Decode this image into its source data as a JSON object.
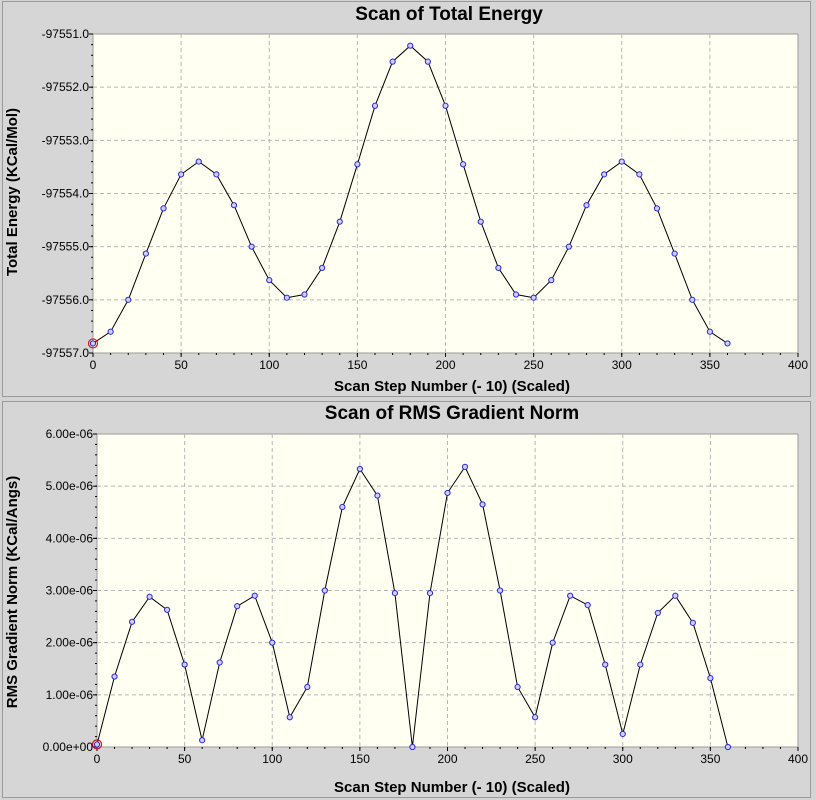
{
  "chart_data": [
    {
      "type": "line",
      "title": "Scan of Total Energy",
      "xlabel": "Scan Step Number (- 10) (Scaled)",
      "ylabel": "Total Energy (KCal/Mol)",
      "xlim": [
        0,
        400
      ],
      "ylim": [
        -97557.0,
        -97551.0
      ],
      "xticks": [
        "0",
        "50",
        "100",
        "150",
        "200",
        "250",
        "300",
        "350",
        "400"
      ],
      "yticks": [
        "-97551.0",
        "-97552.0",
        "-97553.0",
        "-97554.0",
        "-97555.0",
        "-97556.0",
        "-97557.0"
      ],
      "grid": true,
      "selected_index": 0,
      "colors": {
        "marker_stroke": "#2828d8",
        "marker_fill": "#cfd0ff",
        "line": "#000000",
        "selected": "#d01020",
        "plot_bg": "#fffff2"
      },
      "x": [
        0,
        10,
        20,
        30,
        40,
        50,
        60,
        70,
        80,
        90,
        100,
        110,
        120,
        130,
        140,
        150,
        160,
        170,
        180,
        190,
        200,
        210,
        220,
        230,
        240,
        250,
        260,
        270,
        280,
        290,
        300,
        310,
        320,
        330,
        340,
        350,
        360
      ],
      "y": [
        -97556.82,
        -97556.6,
        -97556.0,
        -97555.13,
        -97554.28,
        -97553.64,
        -97553.4,
        -97553.64,
        -97554.22,
        -97555.0,
        -97555.63,
        -97555.96,
        -97555.9,
        -97555.4,
        -97554.53,
        -97553.45,
        -97552.35,
        -97551.52,
        -97551.22,
        -97551.52,
        -97552.35,
        -97553.45,
        -97554.53,
        -97555.4,
        -97555.9,
        -97555.96,
        -97555.63,
        -97555.0,
        -97554.22,
        -97553.64,
        -97553.4,
        -97553.64,
        -97554.28,
        -97555.13,
        -97556.0,
        -97556.6,
        -97556.82
      ]
    },
    {
      "type": "line",
      "title": "Scan of RMS Gradient Norm",
      "xlabel": "Scan Step Number (- 10) (Scaled)",
      "ylabel": "RMS Gradient Norm (KCal/Angs)",
      "xlim": [
        0,
        400
      ],
      "ylim": [
        0,
        6e-06
      ],
      "xticks": [
        "0",
        "50",
        "100",
        "150",
        "200",
        "250",
        "300",
        "350",
        "400"
      ],
      "yticks": [
        "6.00e-06",
        "5.00e-06",
        "4.00e-06",
        "3.00e-06",
        "2.00e-06",
        "1.00e-06",
        "0.00e+00"
      ],
      "grid": true,
      "selected_index": 0,
      "colors": {
        "marker_stroke": "#2828d8",
        "marker_fill": "#cfd0ff",
        "line": "#000000",
        "selected": "#d01020",
        "plot_bg": "#fffff2"
      },
      "x": [
        0,
        10,
        20,
        30,
        40,
        50,
        60,
        70,
        80,
        90,
        100,
        110,
        120,
        130,
        140,
        150,
        160,
        170,
        180,
        190,
        200,
        210,
        220,
        230,
        240,
        250,
        260,
        270,
        280,
        290,
        300,
        310,
        320,
        330,
        340,
        350,
        360
      ],
      "y": [
        5e-08,
        1.35e-06,
        2.4e-06,
        2.88e-06,
        2.63e-06,
        1.58e-06,
        1.3e-07,
        1.62e-06,
        2.7e-06,
        2.9e-06,
        2e-06,
        5.7e-07,
        1.15e-06,
        3e-06,
        4.6e-06,
        5.33e-06,
        4.82e-06,
        2.95e-06,
        0.0,
        2.95e-06,
        4.87e-06,
        5.37e-06,
        4.65e-06,
        3e-06,
        1.15e-06,
        5.7e-07,
        2e-06,
        2.9e-06,
        2.72e-06,
        1.58e-06,
        2.5e-07,
        1.58e-06,
        2.57e-06,
        2.9e-06,
        2.38e-06,
        1.32e-06,
        0.0
      ]
    }
  ]
}
